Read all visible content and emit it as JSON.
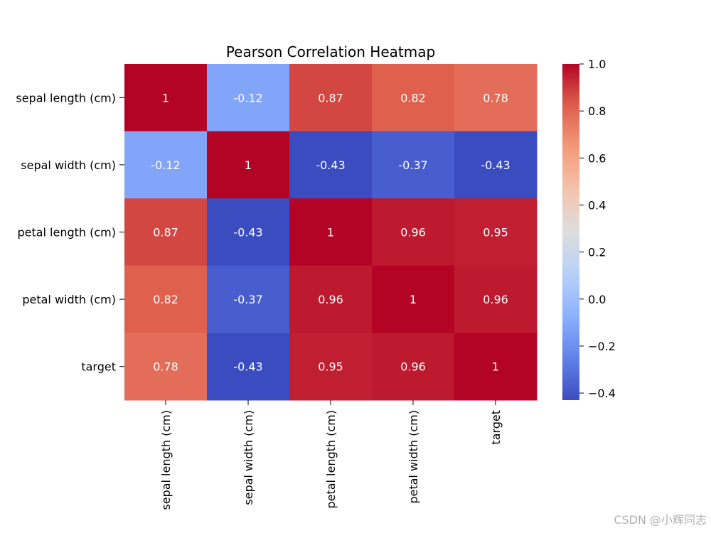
{
  "chart_data": {
    "type": "heatmap",
    "title": "Pearson Correlation Heatmap",
    "row_labels": [
      "sepal length (cm)",
      "sepal width (cm)",
      "petal length (cm)",
      "petal width (cm)",
      "target"
    ],
    "col_labels": [
      "sepal length (cm)",
      "sepal width (cm)",
      "petal length (cm)",
      "petal width (cm)",
      "target"
    ],
    "values": [
      [
        1,
        -0.12,
        0.87,
        0.82,
        0.78
      ],
      [
        -0.12,
        1,
        -0.43,
        -0.37,
        -0.43
      ],
      [
        0.87,
        -0.43,
        1,
        0.96,
        0.95
      ],
      [
        0.82,
        -0.37,
        0.96,
        1,
        0.96
      ],
      [
        0.78,
        -0.43,
        0.95,
        0.96,
        1
      ]
    ],
    "annotations": [
      [
        "1",
        "-0.12",
        "0.87",
        "0.82",
        "0.78"
      ],
      [
        "-0.12",
        "1",
        "-0.43",
        "-0.37",
        "-0.43"
      ],
      [
        "0.87",
        "-0.43",
        "1",
        "0.96",
        "0.95"
      ],
      [
        "0.82",
        "-0.37",
        "0.96",
        "1",
        "0.96"
      ],
      [
        "0.78",
        "-0.43",
        "0.95",
        "0.96",
        "1"
      ]
    ],
    "colormap": "coolwarm",
    "colorbar": {
      "vmin": -0.43,
      "vmax": 1.0,
      "ticks": [
        1.0,
        0.8,
        0.6,
        0.4,
        0.2,
        0.0,
        -0.2,
        -0.4
      ],
      "tick_labels": [
        "1.0",
        "0.8",
        "0.6",
        "0.4",
        "0.2",
        "0.0",
        "−0.2",
        "−0.4"
      ]
    }
  },
  "watermark": "CSDN @小辉同志"
}
